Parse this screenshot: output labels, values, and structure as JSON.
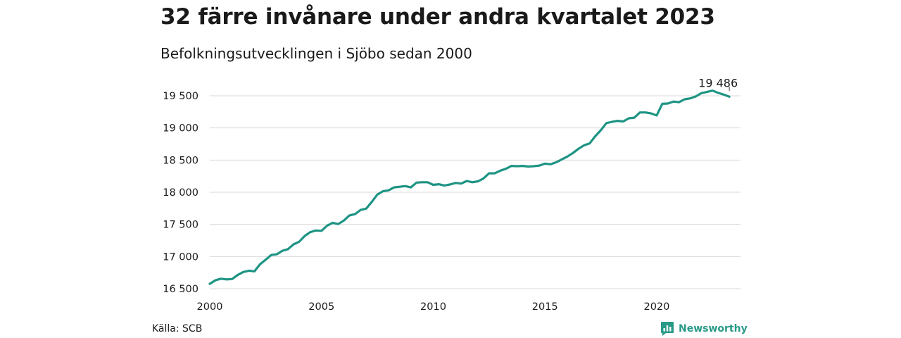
{
  "title": "32 färre invånare under andra kvartalet 2023",
  "subtitle": "Befolkningsutvecklingen i Sjöbo sedan 2000",
  "source": "Källa: SCB",
  "brand": {
    "name": "Newsworthy",
    "icon": "newsworthy-logo-icon",
    "color": "#2a9a88"
  },
  "colors": {
    "line": "#1e9484",
    "grid": "#d9d9d9",
    "text": "#1a1a1a"
  },
  "chart_data": {
    "type": "line",
    "title": "32 färre invånare under andra kvartalet 2023",
    "subtitle": "Befolkningsutvecklingen i Sjöbo sedan 2000",
    "xlabel": "",
    "ylabel": "",
    "xlim": [
      2000,
      2023.75
    ],
    "ylim": [
      16500,
      19600
    ],
    "grid": "horizontal",
    "legend": "none",
    "x_ticks": [
      {
        "value": 2000,
        "label": "2000"
      },
      {
        "value": 2005,
        "label": "2005"
      },
      {
        "value": 2010,
        "label": "2010"
      },
      {
        "value": 2015,
        "label": "2015"
      },
      {
        "value": 2020,
        "label": "2020"
      }
    ],
    "y_ticks": [
      {
        "value": 16500,
        "label": "16 500"
      },
      {
        "value": 17000,
        "label": "17 000"
      },
      {
        "value": 17500,
        "label": "17 500"
      },
      {
        "value": 18000,
        "label": "18 000"
      },
      {
        "value": 18500,
        "label": "18 500"
      },
      {
        "value": 19000,
        "label": "19 000"
      },
      {
        "value": 19500,
        "label": "19 500"
      }
    ],
    "end_label": "19 486",
    "series": [
      {
        "x": [
          2000,
          2000.25,
          2000.5,
          2000.75,
          2001,
          2001.25,
          2001.5,
          2001.75,
          2002,
          2002.25,
          2002.5,
          2002.75,
          2003,
          2003.25,
          2003.5,
          2003.75,
          2004,
          2004.25,
          2004.5,
          2004.75,
          2005,
          2005.25,
          2005.5,
          2005.75,
          2006,
          2006.25,
          2006.5,
          2006.75,
          2007,
          2007.25,
          2007.5,
          2007.75,
          2008,
          2008.25,
          2008.5,
          2008.75,
          2009,
          2009.25,
          2009.5,
          2009.75,
          2010,
          2010.25,
          2010.5,
          2010.75,
          2011,
          2011.25,
          2011.5,
          2011.75,
          2012,
          2012.25,
          2012.5,
          2012.75,
          2013,
          2013.25,
          2013.5,
          2013.75,
          2014,
          2014.25,
          2014.5,
          2014.75,
          2015,
          2015.25,
          2015.5,
          2015.75,
          2016,
          2016.25,
          2016.5,
          2016.75,
          2017,
          2017.25,
          2017.5,
          2017.75,
          2018,
          2018.25,
          2018.5,
          2018.75,
          2019,
          2019.25,
          2019.5,
          2019.75,
          2020,
          2020.25,
          2020.5,
          2020.75,
          2021,
          2021.25,
          2021.5,
          2021.75,
          2022,
          2022.25,
          2022.5,
          2022.75,
          2023,
          2023.25
        ],
        "y": [
          16575,
          16630,
          16655,
          16645,
          16650,
          16715,
          16760,
          16780,
          16770,
          16880,
          16950,
          17025,
          17035,
          17090,
          17115,
          17190,
          17230,
          17320,
          17380,
          17405,
          17400,
          17480,
          17525,
          17505,
          17560,
          17640,
          17660,
          17725,
          17745,
          17850,
          17965,
          18015,
          18030,
          18075,
          18085,
          18095,
          18075,
          18150,
          18155,
          18155,
          18115,
          18125,
          18105,
          18120,
          18145,
          18135,
          18175,
          18155,
          18170,
          18215,
          18295,
          18295,
          18335,
          18365,
          18410,
          18405,
          18410,
          18400,
          18405,
          18415,
          18445,
          18435,
          18465,
          18510,
          18555,
          18610,
          18675,
          18730,
          18760,
          18870,
          18965,
          19075,
          19095,
          19110,
          19100,
          19150,
          19160,
          19240,
          19240,
          19225,
          19195,
          19375,
          19380,
          19410,
          19400,
          19445,
          19460,
          19490,
          19540,
          19560,
          19580,
          19545,
          19518,
          19486
        ]
      }
    ]
  }
}
